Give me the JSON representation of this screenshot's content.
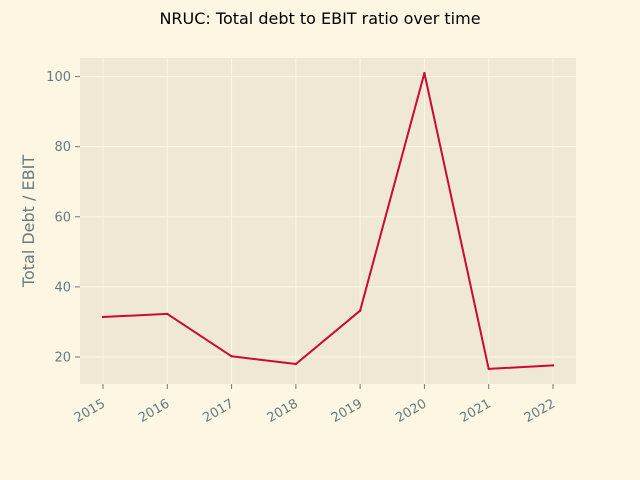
{
  "chart_data": {
    "type": "line",
    "title": "NRUC: Total debt to EBIT ratio over time",
    "xlabel": "",
    "ylabel": "Total Debt / EBIT",
    "categories": [
      "2015",
      "2016",
      "2017",
      "2018",
      "2019",
      "2020",
      "2021",
      "2022"
    ],
    "series": [
      {
        "values": [
          31.4,
          32.3,
          20.2,
          18.0,
          33.2,
          101.0,
          16.6,
          17.6
        ],
        "color": "#cc0a33"
      }
    ],
    "ylim": [
      12.3,
      105.3
    ],
    "yticks": [
      20,
      40,
      60,
      80,
      100
    ],
    "grid": true,
    "plot_background": "#eee8d5",
    "figure_background": "#fdf6e3"
  }
}
